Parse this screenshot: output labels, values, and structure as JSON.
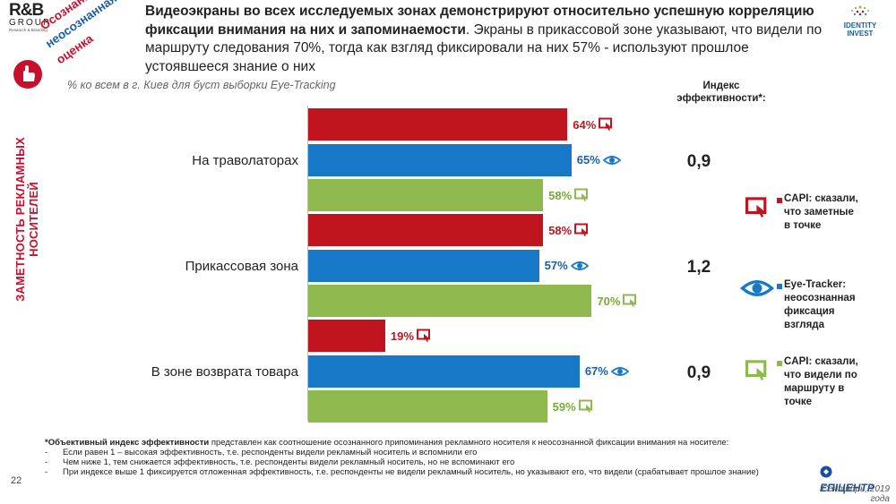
{
  "logo": {
    "line1": "R&B",
    "line2": "GROUP",
    "line3": "Research & Branding"
  },
  "rotated_title": {
    "line1": "Осознанная и",
    "line2": "неосознанная",
    "line3": "оценка"
  },
  "side_label": "ЗАМЕТНОСТЬ РЕКЛАМНЫХ НОСИТЕЛЕЙ",
  "headline": {
    "bold": "Видеоэкраны во всех исследуемых зонах демонстрируют относительно успешную корреляцию фиксации внимания на них и запоминаемости",
    "normal": ". Экраны в прикассовой зоне указывают, что видели по маршруту следования 70%, тогда как взгляд фиксировали на них 57% - используют прошлое устоявшееся знание о них"
  },
  "brand_logo": {
    "line1": "IDENTITY",
    "line2": "INVEST"
  },
  "subtitle": "% ко всем в г. Киев для буст выборки Eye-Tracking",
  "index_header": {
    "line1": "Индекс",
    "line2": "эффективности*:"
  },
  "colors": {
    "capi_said": "#c0151f",
    "eye_tracker": "#1878c8",
    "capi_seen": "#8db94f",
    "accent_red": "#c8102e",
    "blue_text": "#1a5fa8",
    "green_text": "#7aa83a"
  },
  "legend": [
    {
      "icon": "screen-touch-icon",
      "color": "#c0151f",
      "lines": [
        "CAPI: сказали,",
        "что заметные",
        "в точке"
      ]
    },
    {
      "icon": "eye-icon",
      "color": "#1878c8",
      "lines": [
        "Eye-Tracker:",
        "неосознанная",
        "фиксация",
        "взгляда"
      ]
    },
    {
      "icon": "screen-touch-icon",
      "color": "#8db94f",
      "lines": [
        "CAPI: сказали,",
        "что видели по",
        "маршруту в",
        "точке"
      ]
    }
  ],
  "chart_data": {
    "type": "bar",
    "orientation": "horizontal",
    "categories": [
      "На траволаторах",
      "Прикассовая зона",
      "В зоне возврата товара"
    ],
    "series": [
      {
        "name": "CAPI: сказали, что заметные в точке",
        "values": [
          64,
          58,
          19
        ],
        "labels": [
          "64%",
          "58%",
          "19%"
        ],
        "color": "#c0151f"
      },
      {
        "name": "Eye-Tracker: неосознанная фиксация взгляда",
        "values": [
          65,
          57,
          67
        ],
        "labels": [
          "65%",
          "57%",
          "67%"
        ],
        "color": "#1878c8"
      },
      {
        "name": "CAPI: сказали, что видели по маршруту в точке",
        "values": [
          58,
          70,
          59
        ],
        "labels": [
          "58%",
          "70%",
          "59%"
        ],
        "color": "#8db94f"
      }
    ],
    "index_values": [
      "0,9",
      "1,2",
      "0,9"
    ],
    "xlim": [
      0,
      100
    ],
    "grid": false
  },
  "footnote": {
    "bold": "*Объективный индекс эффективности",
    "intro": " представлен как соотношение осознанного припоминания рекламного носителя к неосознанной фиксации внимания на носителе:",
    "items": [
      "Если равен 1 – высокая эффективность, т.е. респонденты видели рекламный носитель и вспомнили его",
      "Чем ниже 1, тем снижается эффективность, т.е. респонденты видели рекламный носитель, но не вспоминают его",
      "При индексе выше 1 фиксируется отложенная эффективность, т.е. респонденты не видели рекламный носитель, но указывают его, что видели (срабатывает прошлое знание)"
    ]
  },
  "page_number": "22",
  "epicentr": "ЕПІЦЕНТР",
  "date": "Сентябрь, 2019 года"
}
